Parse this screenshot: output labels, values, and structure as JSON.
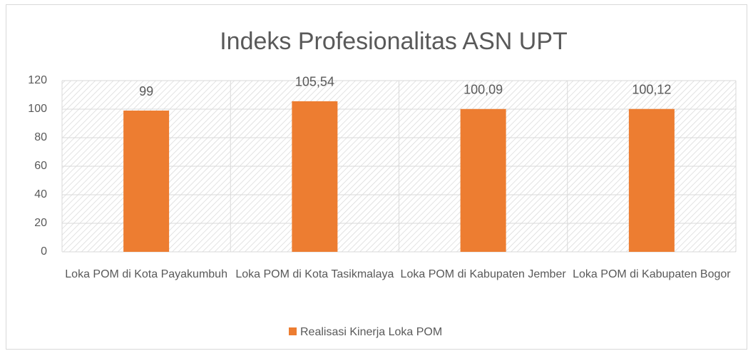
{
  "chart_data": {
    "type": "bar",
    "title": "Indeks Profesionalitas ASN UPT",
    "categories": [
      "Loka POM di Kota Payakumbuh",
      "Loka POM di Kota Tasikmalaya",
      "Loka POM di Kabupaten Jember",
      "Loka POM di Kabupaten Bogor"
    ],
    "series": [
      {
        "name": "Realisasi Kinerja Loka POM",
        "color": "#ed7d31",
        "values": [
          99,
          105.54,
          100.09,
          100.12
        ],
        "value_labels": [
          "99",
          "105,54",
          "100,09",
          "100,12"
        ]
      }
    ],
    "ylim": [
      0,
      120
    ],
    "yticks": [
      0,
      20,
      40,
      60,
      80,
      100,
      120
    ],
    "grid": true,
    "legend": "bottom"
  }
}
